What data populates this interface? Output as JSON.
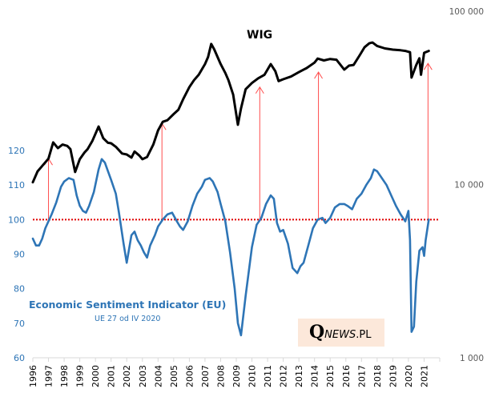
{
  "chart_data": {
    "type": "line",
    "title": "WIG",
    "series": [
      {
        "name": "WIG",
        "axis": "right",
        "scale": "log",
        "color": "#000000",
        "x": [
          1996.0,
          1996.3,
          1996.6,
          1997.0,
          1997.3,
          1997.6,
          1997.9,
          1998.2,
          1998.4,
          1998.7,
          1999.0,
          1999.3,
          1999.5,
          1999.8,
          2000.2,
          2000.5,
          2000.8,
          2001.0,
          2001.3,
          2001.7,
          2002.0,
          2002.3,
          2002.5,
          2002.8,
          2003.0,
          2003.3,
          2003.7,
          2004.0,
          2004.3,
          2004.6,
          2005.0,
          2005.3,
          2005.6,
          2006.0,
          2006.3,
          2006.6,
          2007.0,
          2007.2,
          2007.4,
          2007.6,
          2008.0,
          2008.3,
          2008.5,
          2008.8,
          2009.1,
          2009.3,
          2009.6,
          2010.0,
          2010.4,
          2010.8,
          2011.2,
          2011.5,
          2011.7,
          2012.0,
          2012.5,
          2013.0,
          2013.5,
          2014.0,
          2014.2,
          2014.6,
          2015.0,
          2015.4,
          2015.9,
          2016.2,
          2016.5,
          2016.9,
          2017.2,
          2017.5,
          2017.7,
          2018.0,
          2018.5,
          2019.0,
          2019.5,
          2019.8,
          2020.1,
          2020.2,
          2020.5,
          2020.7,
          2020.8,
          2021.0,
          2021.3
        ],
        "values": [
          10300,
          11900,
          12800,
          14100,
          17500,
          16200,
          17000,
          16700,
          16000,
          11800,
          14000,
          15300,
          16000,
          17800,
          21600,
          18500,
          17400,
          17300,
          16500,
          15100,
          14900,
          14300,
          15500,
          14700,
          14000,
          14400,
          17000,
          20500,
          23000,
          23500,
          25500,
          27000,
          31000,
          36500,
          40000,
          43000,
          49500,
          54500,
          64700,
          60000,
          49500,
          44000,
          40000,
          33000,
          22100,
          27500,
          35500,
          38500,
          41000,
          43000,
          49500,
          45000,
          39500,
          40500,
          42000,
          44500,
          47000,
          50500,
          53300,
          52000,
          53000,
          52500,
          46000,
          48500,
          49000,
          56000,
          62000,
          65300,
          66000,
          63000,
          61000,
          60000,
          59500,
          59000,
          58000,
          41400,
          49000,
          53500,
          43000,
          57500,
          59000
        ]
      },
      {
        "name": "Economic Sentiment Indicator (EU)",
        "axis": "left",
        "color": "#2e75b6",
        "x": [
          1996.0,
          1996.2,
          1996.4,
          1996.6,
          1996.8,
          1997.0,
          1997.2,
          1997.5,
          1997.8,
          1998.0,
          1998.3,
          1998.6,
          1998.8,
          1999.0,
          1999.2,
          1999.4,
          1999.6,
          1999.9,
          2000.2,
          2000.4,
          2000.6,
          2000.8,
          2001.0,
          2001.3,
          2001.5,
          2001.8,
          2002.0,
          2002.3,
          2002.5,
          2002.7,
          2002.9,
          2003.1,
          2003.3,
          2003.5,
          2003.8,
          2004.0,
          2004.3,
          2004.6,
          2004.9,
          2005.2,
          2005.4,
          2005.6,
          2005.9,
          2006.2,
          2006.5,
          2006.8,
          2007.0,
          2007.3,
          2007.5,
          2007.8,
          2008.0,
          2008.3,
          2008.6,
          2008.9,
          2009.1,
          2009.3,
          2009.6,
          2010.0,
          2010.3,
          2010.6,
          2010.9,
          2011.2,
          2011.4,
          2011.6,
          2011.8,
          2012.0,
          2012.3,
          2012.6,
          2012.9,
          2013.1,
          2013.3,
          2013.6,
          2013.9,
          2014.2,
          2014.5,
          2014.7,
          2015.0,
          2015.3,
          2015.6,
          2015.9,
          2016.1,
          2016.4,
          2016.7,
          2017.0,
          2017.3,
          2017.6,
          2017.8,
          2018.0,
          2018.3,
          2018.6,
          2018.9,
          2019.2,
          2019.5,
          2019.8,
          2020.0,
          2020.1,
          2020.2,
          2020.35,
          2020.5,
          2020.7,
          2020.9,
          2021.0,
          2021.1,
          2021.3
        ],
        "values": [
          94.5,
          92.5,
          92.5,
          94.5,
          97.5,
          99.5,
          101.5,
          105.0,
          109.5,
          111.0,
          112.0,
          111.5,
          107.0,
          104.0,
          102.5,
          102.0,
          104.0,
          108.0,
          114.5,
          117.5,
          116.5,
          114.0,
          111.5,
          107.5,
          102.0,
          93.0,
          87.5,
          95.5,
          96.5,
          94.0,
          92.5,
          90.5,
          89.0,
          92.5,
          95.5,
          98.0,
          100.0,
          101.5,
          102.0,
          99.5,
          98.0,
          97.0,
          99.5,
          104.0,
          107.5,
          109.5,
          111.5,
          112.0,
          111.0,
          108.0,
          104.5,
          99.5,
          90.5,
          80.0,
          70.0,
          66.5,
          78.0,
          92.0,
          98.5,
          100.5,
          104.5,
          107.0,
          106.0,
          99.0,
          96.5,
          97.0,
          93.0,
          86.0,
          84.5,
          86.5,
          87.5,
          92.5,
          97.5,
          100.0,
          100.5,
          99.0,
          100.5,
          103.5,
          104.5,
          104.5,
          104.0,
          103.0,
          106.0,
          107.5,
          110.0,
          112.0,
          114.5,
          114.0,
          112.0,
          110.0,
          107.0,
          104.0,
          101.5,
          99.5,
          102.5,
          94.0,
          67.5,
          69.0,
          82.0,
          91.0,
          92.0,
          89.5,
          94.0,
          100.0
        ]
      }
    ],
    "reference_line": {
      "value": 100,
      "axis": "left",
      "color": "#e00000",
      "style": "dotted"
    },
    "arrows": [
      {
        "year": 1997.0,
        "from_esi": 100,
        "to_wig": 14100
      },
      {
        "year": 2004.25,
        "from_esi": 100,
        "to_wig": 22500
      },
      {
        "year": 2010.5,
        "from_esi": 100,
        "to_wig": 36500
      },
      {
        "year": 2014.25,
        "from_esi": 100,
        "to_wig": 44500
      },
      {
        "year": 2021.25,
        "from_esi": 100,
        "to_wig": 50000
      }
    ],
    "x_axis": {
      "ticks": [
        "1996",
        "1997",
        "1998",
        "1999",
        "2000",
        "2001",
        "2002",
        "2003",
        "2004",
        "2005",
        "2006",
        "2007",
        "2008",
        "2009",
        "2010",
        "2011",
        "2012",
        "2013",
        "2014",
        "2015",
        "2016",
        "2017",
        "2018",
        "2019",
        "2020",
        "2021"
      ],
      "range": [
        1996,
        2022
      ]
    },
    "y_left": {
      "ticks": [
        60,
        70,
        80,
        90,
        100,
        110,
        120
      ],
      "tick_labels": [
        "60",
        "70",
        "80",
        "90",
        "100",
        "110",
        "120"
      ],
      "range": [
        60,
        120
      ]
    },
    "y_right": {
      "scale": "log",
      "ticks": [
        1000,
        10000,
        100000
      ],
      "tick_labels": [
        "1 000",
        "10 000",
        "100 000"
      ],
      "range": [
        1000,
        100000
      ]
    },
    "annotations": {
      "wig_label": "WIG",
      "esi_label": "Economic Sentiment Indicator (EU)",
      "esi_sublabel": "UE 27 od IV 2020"
    },
    "grid": false
  },
  "watermark": {
    "q": "Q",
    "news": "NEWS",
    "pl": ".PL",
    "background": "#fce8da"
  }
}
